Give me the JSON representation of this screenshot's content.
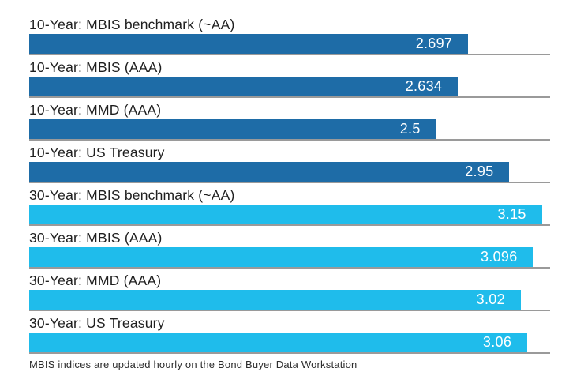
{
  "chart_data": {
    "type": "bar",
    "orientation": "horizontal",
    "title": "",
    "xlabel": "",
    "ylabel": "",
    "xlim": [
      0,
      3.2
    ],
    "grid": "baseline-under-each-bar",
    "legend": "none",
    "categories": [
      "10-Year: MBIS benchmark (~AA)",
      "10-Year: MBIS (AAA)",
      "10-Year: MMD (AAA)",
      "10-Year: US Treasury",
      "30-Year: MBIS benchmark (~AA)",
      "30-Year: MBIS (AAA)",
      "30-Year: MMD (AAA)",
      "30-Year: US Treasury"
    ],
    "values": [
      2.697,
      2.634,
      2.5,
      2.95,
      3.15,
      3.096,
      3.02,
      3.06
    ],
    "value_labels": [
      "2.697",
      "2.634",
      "2.5",
      "2.95",
      "3.15",
      "3.096",
      "3.02",
      "3.06"
    ],
    "bar_colors": [
      "#1E6CA7",
      "#1E6CA7",
      "#1E6CA7",
      "#1E6CA7",
      "#1FBCEB",
      "#1FBCEB",
      "#1FBCEB",
      "#1FBCEB"
    ],
    "series": [
      {
        "name": "10-Year",
        "color": "#1E6CA7",
        "values": [
          2.697,
          2.634,
          2.5,
          2.95
        ]
      },
      {
        "name": "30-Year",
        "color": "#1FBCEB",
        "values": [
          3.15,
          3.096,
          3.02,
          3.06
        ]
      }
    ],
    "footnote": "MBIS indices are updated hourly on the Bond Buyer Data Workstation"
  },
  "colors": {
    "dark_blue": "#1E6CA7",
    "cyan": "#1FBCEB",
    "baseline_gray": "#9a9a9a",
    "label_text": "#1f1f1f",
    "value_text": "#ffffff",
    "background": "#ffffff"
  }
}
